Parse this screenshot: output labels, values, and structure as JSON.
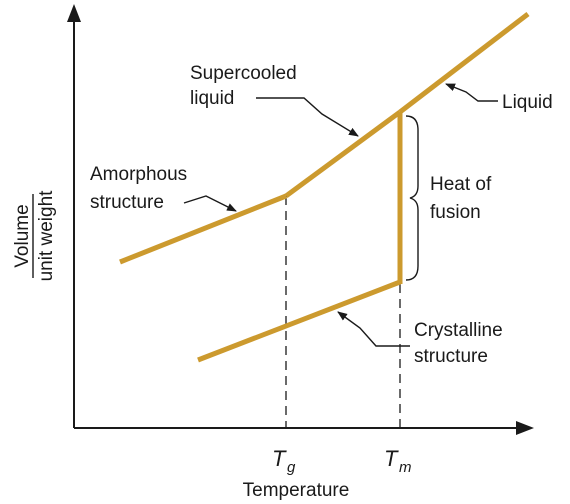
{
  "colors": {
    "curve": "#cc9a2e",
    "ink": "#1a1a1a"
  },
  "axes": {
    "x_label": "Temperature",
    "y_label_numerator": "Volume",
    "y_label_denominator": "unit weight"
  },
  "ticks": {
    "tg": {
      "main": "T",
      "sub": "g"
    },
    "tm": {
      "main": "T",
      "sub": "m"
    }
  },
  "labels": {
    "supercooled_line1": "Supercooled",
    "supercooled_line2": "liquid",
    "liquid": "Liquid",
    "amorphous_line1": "Amorphous",
    "amorphous_line2": "structure",
    "heat_line1": "Heat of",
    "heat_line2": "fusion",
    "crystalline_line1": "Crystalline",
    "crystalline_line2": "structure"
  }
}
